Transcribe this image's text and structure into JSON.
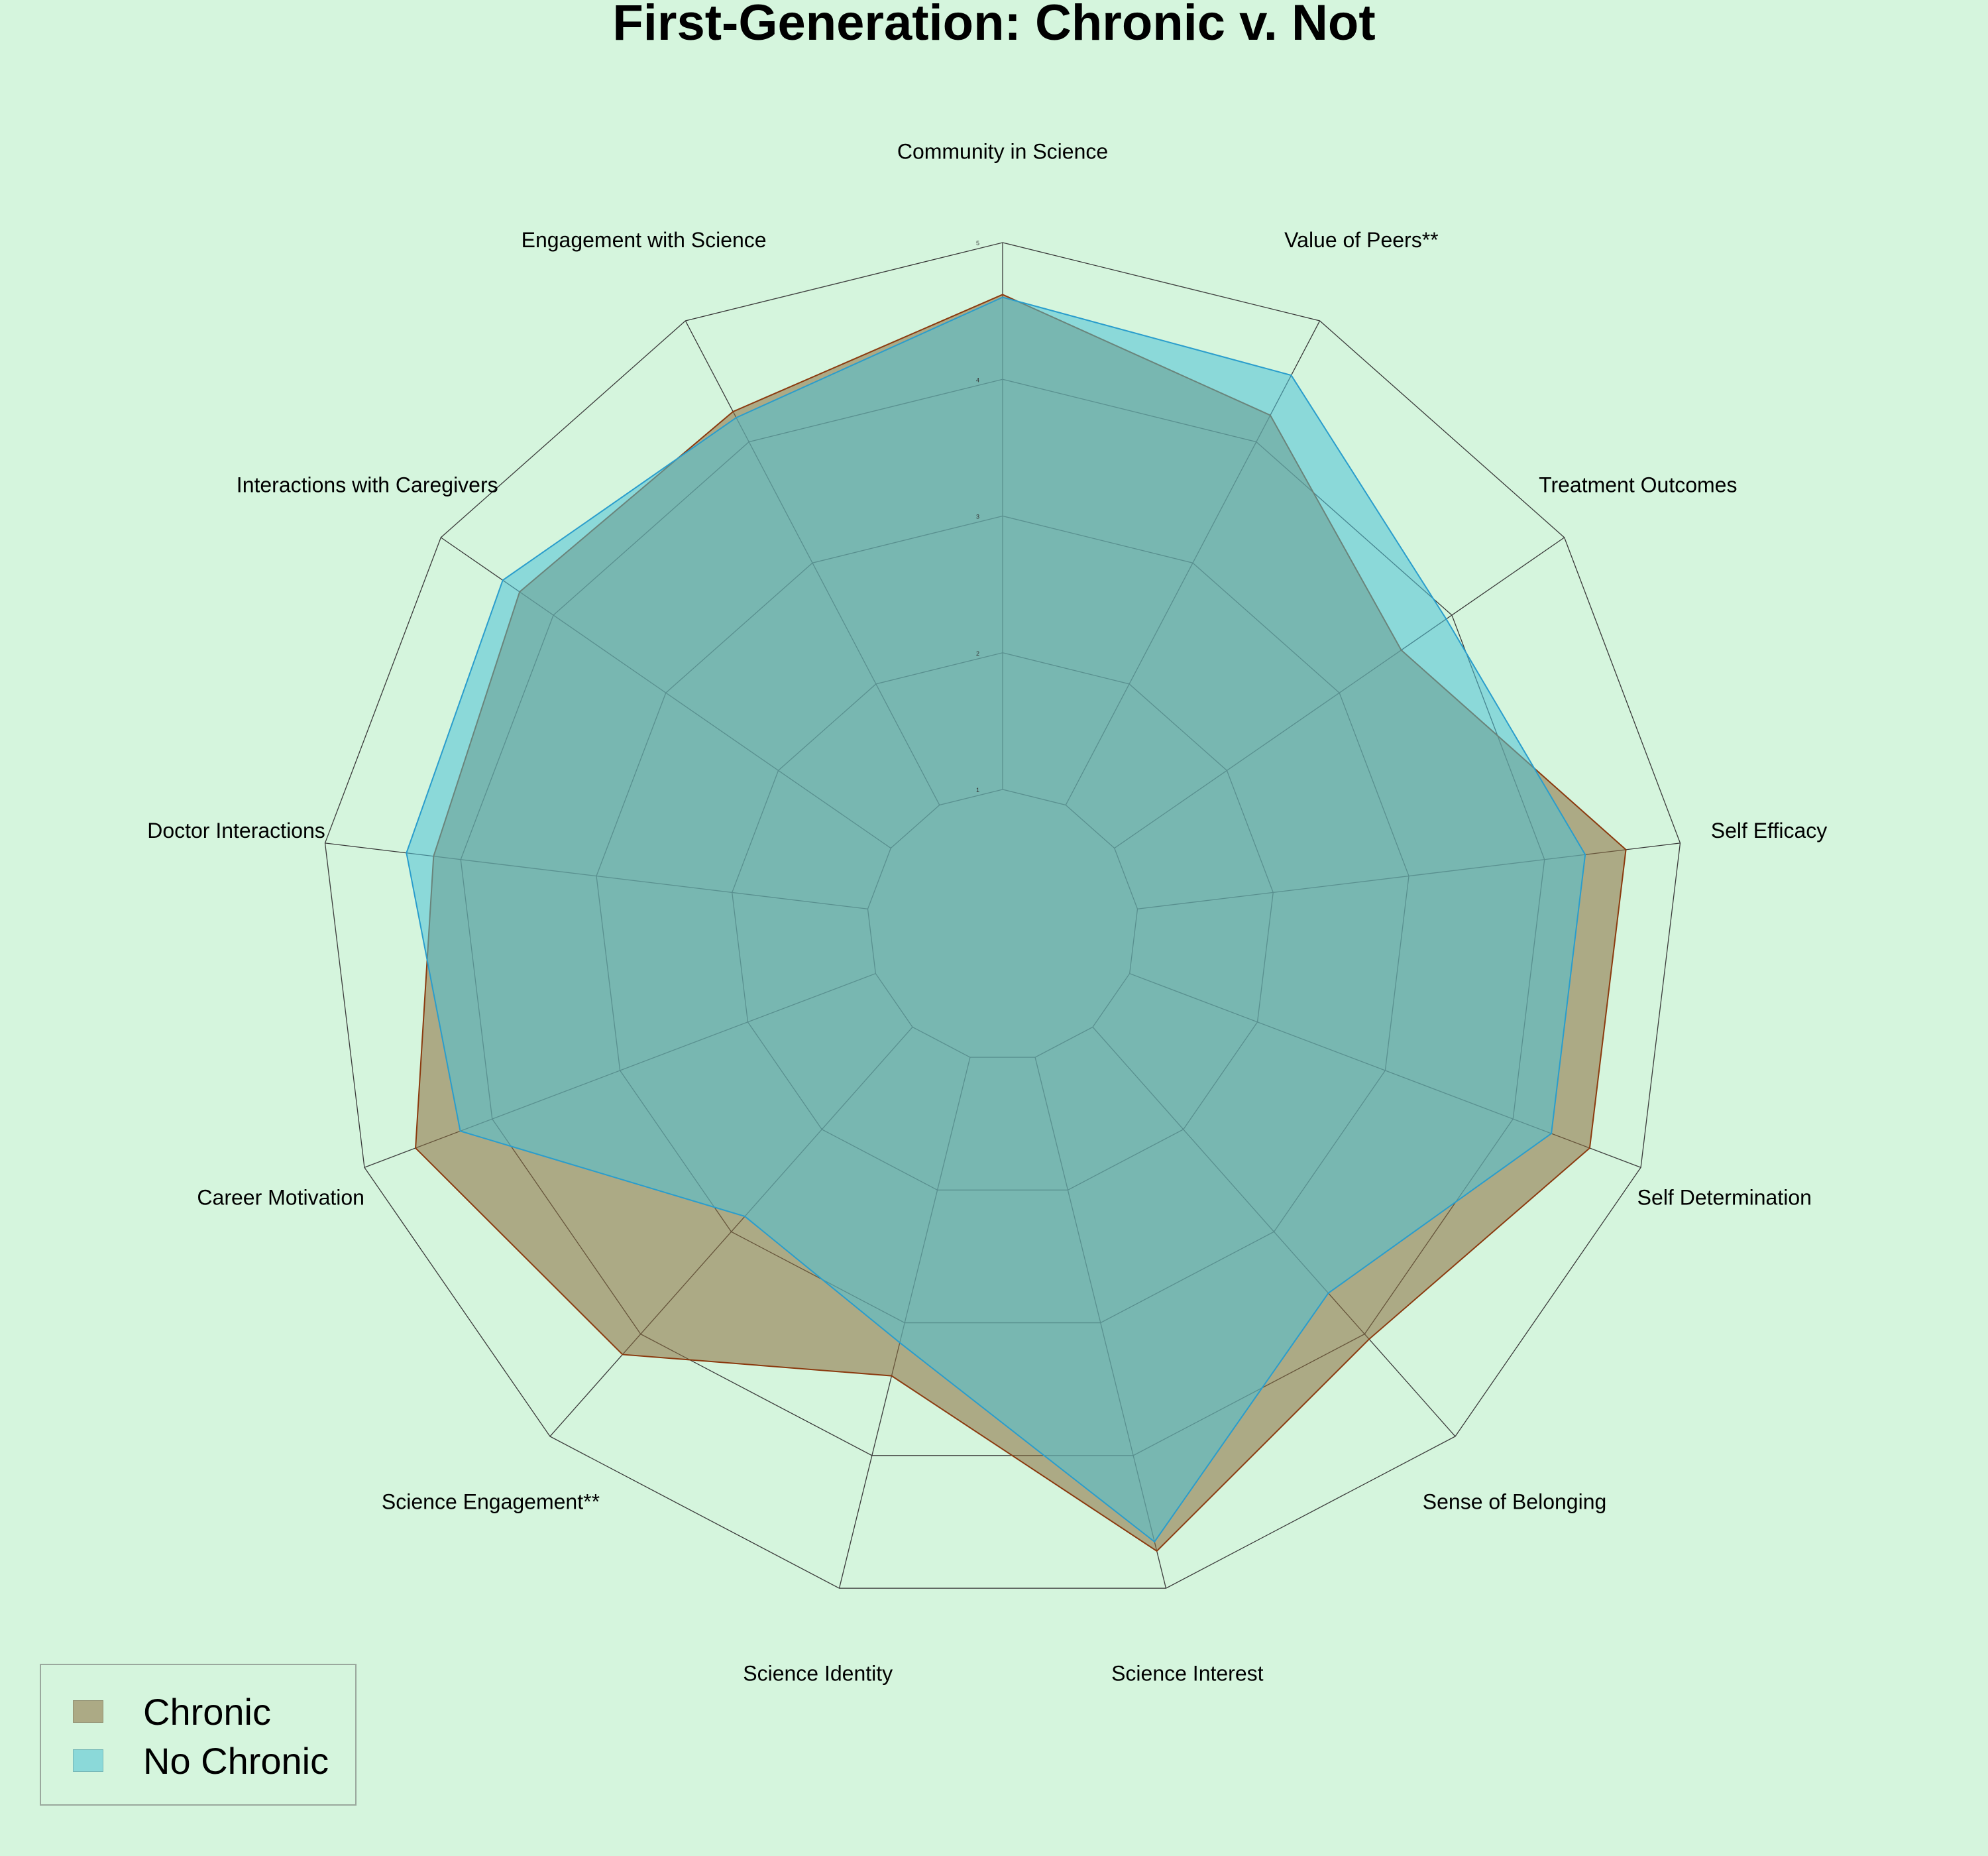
{
  "chart_data": {
    "type": "radar",
    "title": "First-Generation: Chronic v. Not",
    "axes": [
      "Community in Science",
      "Value of Peers**",
      "Treatment Outcomes",
      "Self Efficacy",
      "Self Determination",
      "Sense of Belonging",
      "Science Interest",
      "Science Identity",
      "Science Engagement**",
      "Career Motivation",
      "Doctor Interactions",
      "Interactions with Caregivers",
      "Engagement with Science"
    ],
    "rlim": [
      1,
      5
    ],
    "ticks": [
      "1",
      "2",
      "3",
      "4",
      "5"
    ],
    "grid": true,
    "legend_position": "lower-left",
    "series": [
      {
        "name": "Chronic",
        "color": "#8B6B3D",
        "edge": "#8B3A0F",
        "values": [
          4.62,
          4.22,
          3.55,
          4.6,
          4.6,
          4.05,
          4.72,
          3.4,
          4.2,
          4.6,
          4.2,
          4.3,
          4.25
        ]
      },
      {
        "name": "No Chronic",
        "color": "#4FC1D6",
        "edge": "#2A9DCC",
        "values": [
          4.6,
          4.55,
          3.95,
          4.3,
          4.3,
          3.6,
          4.65,
          3.15,
          2.85,
          4.25,
          4.4,
          4.45,
          4.2
        ]
      }
    ]
  }
}
